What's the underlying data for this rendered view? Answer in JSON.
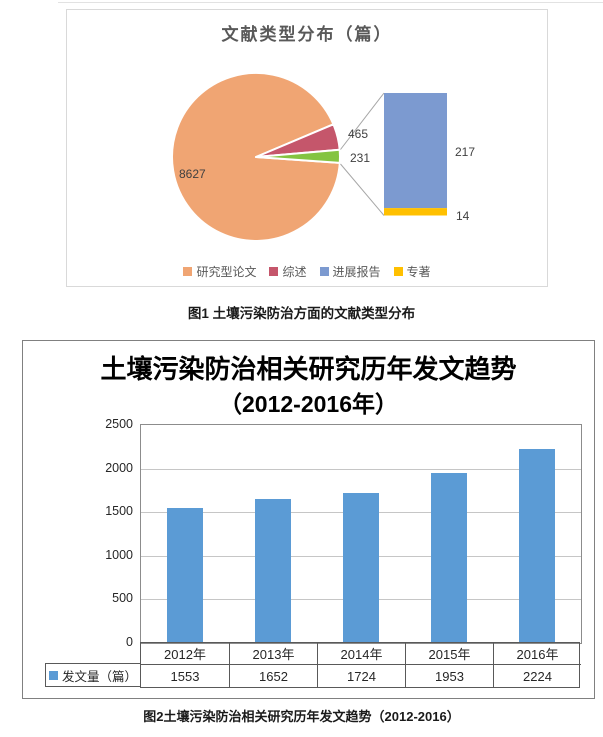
{
  "figure1": {
    "title": "文献类型分布（篇）",
    "pie": {
      "slices": [
        {
          "key": "research",
          "name": "研究型论文",
          "value": 8627,
          "color": "#F0A573"
        },
        {
          "key": "review",
          "name": "综述",
          "value": 465,
          "color": "#C5566B"
        },
        {
          "key": "other-group",
          "name": "进展报告+专著",
          "value": 231,
          "color": "#84C441"
        }
      ],
      "labels": {
        "main": "8627",
        "review": "465",
        "other": "231"
      }
    },
    "bar_of_pie": {
      "segments": [
        {
          "key": "progress",
          "name": "进展报告",
          "value": 217,
          "color": "#7C9AD0"
        },
        {
          "key": "monograph",
          "name": "专著",
          "value": 14,
          "color": "#FFC000"
        }
      ],
      "labels": {
        "progress": "217",
        "monograph": "14"
      }
    },
    "legend": [
      {
        "key": "research",
        "label": "研究型论文",
        "color": "#F0A573"
      },
      {
        "key": "review",
        "label": "综述",
        "color": "#C5566B"
      },
      {
        "key": "progress",
        "label": "进展报告",
        "color": "#7C9AD0"
      },
      {
        "key": "monograph",
        "label": "专著",
        "color": "#FFC000"
      }
    ]
  },
  "captions": {
    "fig1": "图1  土壤污染防治方面的文献类型分布",
    "fig2": "图2土壤污染防治相关研究历年发文趋势（2012-2016）"
  },
  "figure2": {
    "title_line1": "土壤污染防治相关研究历年发文趋势",
    "title_line2": "（2012-2016年）",
    "y_ticks": [
      0,
      500,
      1000,
      1500,
      2000,
      2500
    ],
    "y_max": 2500,
    "categories": [
      "2012年",
      "2013年",
      "2014年",
      "2015年",
      "2016年"
    ],
    "values": [
      1553,
      1652,
      1724,
      1953,
      2224
    ],
    "series_label": "发文量（篇）",
    "bar_color": "#5B9BD5"
  },
  "chart_data": [
    {
      "type": "pie",
      "variant": "bar-of-pie",
      "title": "文献类型分布（篇）",
      "labels": [
        "研究型论文",
        "综述",
        "进展报告",
        "专著"
      ],
      "values": [
        8627,
        465,
        217,
        14
      ],
      "pie_group_value": 231,
      "data_labels": [
        8627,
        465,
        231,
        217,
        14
      ],
      "colors": [
        "#F0A573",
        "#C5566B",
        "#7C9AD0",
        "#FFC000"
      ],
      "legend_position": "bottom"
    },
    {
      "type": "bar",
      "title": "土壤污染防治相关研究历年发文趋势（2012-2016年）",
      "categories": [
        "2012年",
        "2013年",
        "2014年",
        "2015年",
        "2016年"
      ],
      "series": [
        {
          "name": "发文量（篇）",
          "values": [
            1553,
            1652,
            1724,
            1953,
            2224
          ]
        }
      ],
      "ylim": [
        0,
        2500
      ],
      "ytick_step": 500,
      "grid": true,
      "data_table": true,
      "bar_color": "#5B9BD5",
      "xlabel": "",
      "ylabel": ""
    }
  ]
}
